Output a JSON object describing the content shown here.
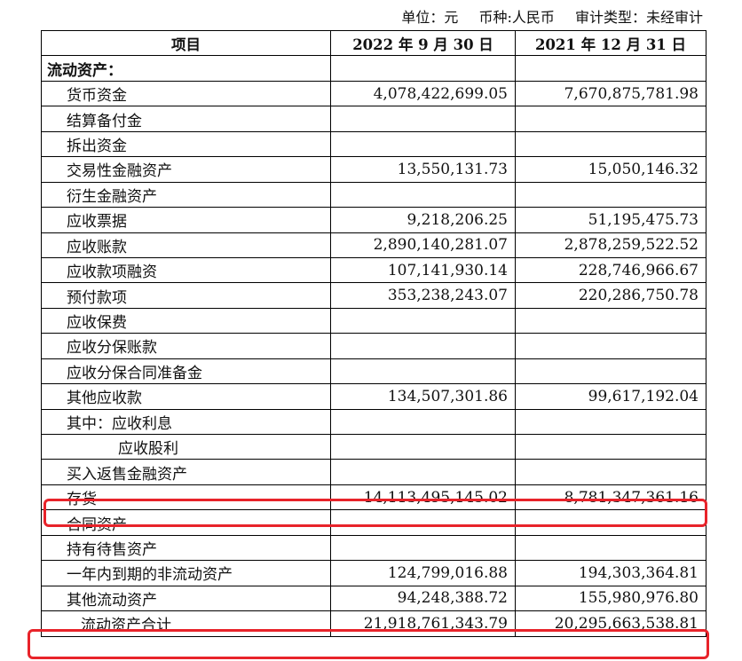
{
  "meta": {
    "unit": "单位：元",
    "currency": "币种:人民币",
    "audit": "审计类型：未经审计"
  },
  "header": [
    "项目",
    "2022 年 9 月 30 日",
    "2021 年 12 月 31 日"
  ],
  "rows": [
    {
      "label": "流动资产：",
      "v1": "",
      "v2": "",
      "kind": "section"
    },
    {
      "label": "货币资金",
      "v1": "4,078,422,699.05",
      "v2": "7,670,875,781.98"
    },
    {
      "label": "结算备付金",
      "v1": "",
      "v2": ""
    },
    {
      "label": "拆出资金",
      "v1": "",
      "v2": ""
    },
    {
      "label": "交易性金融资产",
      "v1": "13,550,131.73",
      "v2": "15,050,146.32"
    },
    {
      "label": "衍生金融资产",
      "v1": "",
      "v2": ""
    },
    {
      "label": "应收票据",
      "v1": "9,218,206.25",
      "v2": "51,195,475.73"
    },
    {
      "label": "应收账款",
      "v1": "2,890,140,281.07",
      "v2": "2,878,259,522.52"
    },
    {
      "label": "应收款项融资",
      "v1": "107,141,930.14",
      "v2": "228,746,966.67"
    },
    {
      "label": "预付款项",
      "v1": "353,238,243.07",
      "v2": "220,286,750.78"
    },
    {
      "label": "应收保费",
      "v1": "",
      "v2": ""
    },
    {
      "label": "应收分保账款",
      "v1": "",
      "v2": ""
    },
    {
      "label": "应收分保合同准备金",
      "v1": "",
      "v2": ""
    },
    {
      "label": "其他应收款",
      "v1": "134,507,301.86",
      "v2": "99,617,192.04"
    },
    {
      "label": "其中：应收利息",
      "v1": "",
      "v2": ""
    },
    {
      "label": "应收股利",
      "v1": "",
      "v2": "",
      "kind": "indent2"
    },
    {
      "label": "买入返售金融资产",
      "v1": "",
      "v2": ""
    },
    {
      "label": "存货",
      "v1": "14,113,495,145.02",
      "v2": "8,781,347,361.16"
    },
    {
      "label": "合同资产",
      "v1": "",
      "v2": ""
    },
    {
      "label": "持有待售资产",
      "v1": "",
      "v2": ""
    },
    {
      "label": "一年内到期的非流动资产",
      "v1": "124,799,016.88",
      "v2": "194,303,364.81"
    },
    {
      "label": "其他流动资产",
      "v1": "94,248,388.72",
      "v2": "155,980,976.80"
    },
    {
      "label": "流动资产合计",
      "v1": "21,918,761,343.79",
      "v2": "20,295,663,538.81",
      "kind": "total"
    }
  ],
  "highlight_color": "#e8232a"
}
